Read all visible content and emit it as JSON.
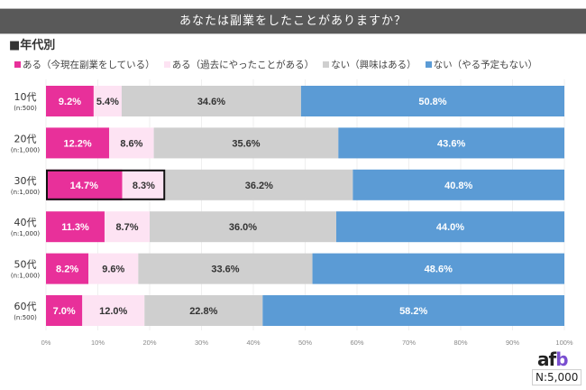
{
  "header": {
    "title": "あなたは副業をしたことがありますか？",
    "section": "■年代別"
  },
  "footer": {
    "logo_a": "af",
    "logo_b": "b",
    "n_label": "N:5,000"
  },
  "chart_data": {
    "type": "bar",
    "orientation": "horizontal-stacked-100",
    "title": "あなたは副業をしたことがありますか？",
    "subtitle": "■年代別",
    "categories": [
      "10代",
      "20代",
      "30代",
      "40代",
      "50代",
      "60代"
    ],
    "category_sublabels": [
      "(n:500)",
      "(n:1,000)",
      "(n:1,000)",
      "(n:1,000)",
      "(n:1,000)",
      "(n:500)"
    ],
    "series": [
      {
        "name": "ある（今現在副業をしている）",
        "color": "#e8309a",
        "label_color": "#ffffff",
        "values": [
          9.2,
          12.2,
          14.7,
          11.3,
          8.2,
          7.0
        ]
      },
      {
        "name": "ある（過去にやったことがある）",
        "color": "#fde3f3",
        "label_color": "#333333",
        "values": [
          5.4,
          8.6,
          8.3,
          8.7,
          9.6,
          12.0
        ]
      },
      {
        "name": "ない（興味はある）",
        "color": "#cfcfcf",
        "label_color": "#333333",
        "values": [
          34.6,
          35.6,
          36.2,
          36.0,
          33.6,
          22.8
        ]
      },
      {
        "name": "ない（やる予定もない）",
        "color": "#5b9bd5",
        "label_color": "#ffffff",
        "values": [
          50.8,
          43.6,
          40.8,
          44.0,
          48.6,
          58.2
        ]
      }
    ],
    "highlight": {
      "category_index": 2,
      "series_indices": [
        0,
        1
      ]
    },
    "xlim": [
      0,
      100
    ],
    "xticks": [
      "0%",
      "10%",
      "20%",
      "30%",
      "40%",
      "50%",
      "60%",
      "70%",
      "80%",
      "90%",
      "100%"
    ],
    "grid": true,
    "legend": "top",
    "total_n": "N:5,000"
  }
}
